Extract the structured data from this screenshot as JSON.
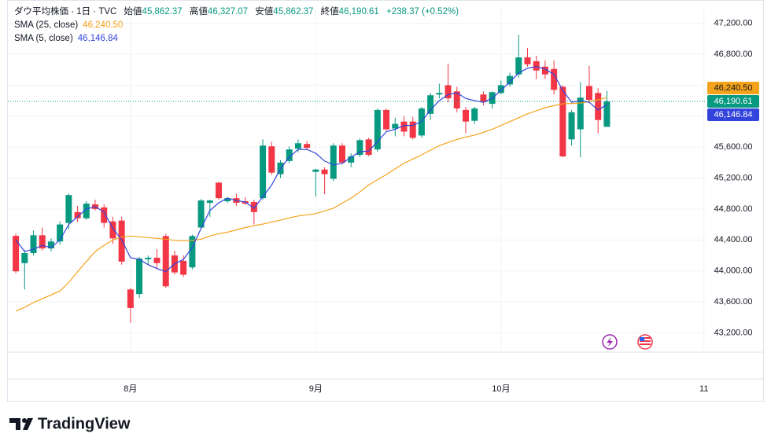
{
  "header": {
    "title": "ダウ平均株価 · 1日 · TVC",
    "open_label": "始値",
    "open": "45,862.37",
    "high_label": "高値",
    "high": "46,327.07",
    "low_label": "安値",
    "low": "45,862.37",
    "close_label": "終値",
    "close": "46,190.61",
    "change": "+238.37 (+0.52%)",
    "sma25_value": "46,240.50",
    "sma5_value": "46,146.84"
  },
  "chart_data": {
    "type": "candlestick",
    "up_color": "#089981",
    "down_color": "#f23645",
    "open": [
      44452,
      44100,
      44230,
      44460,
      44290,
      44380,
      44620,
      44760,
      44680,
      44860,
      44820,
      44640,
      44650,
      43760,
      43700,
      44150,
      44170,
      44450,
      44200,
      44130,
      44045,
      44560,
      44880,
      45140,
      44900,
      44940,
      44900,
      44890,
      44940,
      45610,
      45250,
      45420,
      45580,
      45640,
      45280,
      45310,
      45190,
      45620,
      45400,
      45500,
      45700,
      45570,
      46080,
      45840,
      45930,
      45930,
      45750,
      46030,
      46280,
      46400,
      46320,
      46080,
      45940,
      46280,
      46160,
      46300,
      46410,
      46540,
      46760,
      46710,
      46640,
      46610,
      46380,
      45700,
      45830,
      46390,
      46300,
      45862.37
    ],
    "high": [
      44480,
      44270,
      44520,
      44560,
      44420,
      44640,
      45000,
      44840,
      44900,
      44920,
      44860,
      44700,
      44700,
      43780,
      44180,
      44200,
      44280,
      44480,
      44260,
      44200,
      44470,
      44930,
      44920,
      45150,
      44960,
      45000,
      44950,
      44920,
      45700,
      45670,
      45430,
      45610,
      45700,
      45680,
      45320,
      45340,
      45650,
      45650,
      45520,
      45710,
      45720,
      46100,
      46100,
      45980,
      46000,
      45990,
      46120,
      46300,
      46420,
      46680,
      46380,
      46120,
      46120,
      46320,
      46320,
      46460,
      46560,
      47050,
      46880,
      46780,
      46720,
      46720,
      46400,
      46080,
      46440,
      46650,
      46360,
      46327.07
    ],
    "low": [
      43970,
      43760,
      44200,
      44260,
      44250,
      44340,
      44540,
      44630,
      44660,
      44780,
      44560,
      44350,
      44080,
      43330,
      43650,
      44080,
      44020,
      43780,
      43950,
      43920,
      44020,
      44540,
      44700,
      44920,
      44880,
      44840,
      44850,
      44600,
      44920,
      45240,
      45200,
      45390,
      45530,
      45560,
      44960,
      44990,
      45160,
      45380,
      45340,
      45470,
      45480,
      45540,
      45810,
      45740,
      45740,
      45700,
      45720,
      45950,
      46230,
      46180,
      46050,
      45780,
      45900,
      46140,
      46100,
      46280,
      46380,
      46500,
      46640,
      46480,
      46480,
      46280,
      45470,
      45620,
      45470,
      46170,
      45780,
      45862.37
    ],
    "close": [
      43994,
      44230,
      44460,
      44290,
      44380,
      44600,
      44980,
      44680,
      44870,
      44800,
      44620,
      44420,
      44120,
      43520,
      44160,
      44170,
      44100,
      43800,
      43980,
      43950,
      44450,
      44910,
      44910,
      44940,
      44940,
      44880,
      44870,
      44760,
      45620,
      45270,
      45400,
      45570,
      45650,
      45590,
      45310,
      45250,
      45620,
      45400,
      45480,
      45690,
      45500,
      46080,
      45830,
      45900,
      45800,
      45720,
      46100,
      46270,
      46300,
      46230,
      46100,
      45930,
      46100,
      46180,
      46310,
      46400,
      46520,
      46760,
      46670,
      46590,
      46540,
      46340,
      45480,
      46050,
      46240,
      46210,
      45950,
      46190.61
    ],
    "series": [
      {
        "name": "SMA (25, close)",
        "color": "#f5a31a",
        "values": [
          43480,
          43530,
          43590,
          43640,
          43690,
          43740,
          43850,
          43990,
          44120,
          44250,
          44330,
          44400,
          44440,
          44450,
          44440,
          44430,
          44420,
          44410,
          44395,
          44390,
          44395,
          44410,
          44450,
          44480,
          44500,
          44530,
          44560,
          44585,
          44605,
          44630,
          44656,
          44685,
          44710,
          44725,
          44740,
          44775,
          44810,
          44875,
          44940,
          45020,
          45110,
          45180,
          45245,
          45320,
          45390,
          45445,
          45500,
          45560,
          45620,
          45660,
          45700,
          45730,
          45755,
          45790,
          45830,
          45880,
          45930,
          45980,
          46030,
          46070,
          46110,
          46135,
          46160,
          46165,
          46170,
          46190,
          46210,
          46240.5
        ]
      },
      {
        "name": "SMA (5, close)",
        "color": "#3344dd",
        "values": [
          44400,
          44250,
          44280,
          44330,
          44300,
          44400,
          44600,
          44700,
          44800,
          44830,
          44760,
          44550,
          44400,
          44170,
          44150,
          44080,
          44030,
          43990,
          44090,
          44150,
          44300,
          44550,
          44780,
          44880,
          44940,
          44910,
          44890,
          44810,
          44960,
          45110,
          45320,
          45470,
          45570,
          45570,
          45520,
          45420,
          45370,
          45390,
          45470,
          45540,
          45550,
          45670,
          45800,
          45830,
          45880,
          45880,
          45930,
          46080,
          46200,
          46280,
          46300,
          46230,
          46200,
          46180,
          46230,
          46335,
          46440,
          46560,
          46620,
          46640,
          46610,
          46540,
          46335,
          46180,
          46200,
          46180,
          46080,
          46146.84
        ]
      }
    ],
    "xlim": [
      -0.9,
      78.2
    ],
    "xticks": [
      {
        "value": 13,
        "label": "8月"
      },
      {
        "value": 34,
        "label": "9月"
      },
      {
        "value": 55,
        "label": "10月"
      },
      {
        "value": 78,
        "label": "11"
      }
    ],
    "ylim": [
      42960,
      47400
    ],
    "yticks": [
      {
        "value": 43200,
        "label": "43,200.00"
      },
      {
        "value": 43600,
        "label": "43,600.00"
      },
      {
        "value": 44000,
        "label": "44,000.00"
      },
      {
        "value": 44400,
        "label": "44,400.00"
      },
      {
        "value": 44800,
        "label": "44,800.00"
      },
      {
        "value": 45200,
        "label": "45,200.00"
      },
      {
        "value": 45600,
        "label": "45,600.00"
      },
      {
        "value": 46000,
        "label": "46,000.00"
      },
      {
        "value": 46400,
        "label": "46,400.00"
      },
      {
        "value": 46800,
        "label": "46,800.00"
      },
      {
        "value": 47200,
        "label": "47,200.00"
      }
    ],
    "grid": true
  },
  "branding": "TradingView"
}
